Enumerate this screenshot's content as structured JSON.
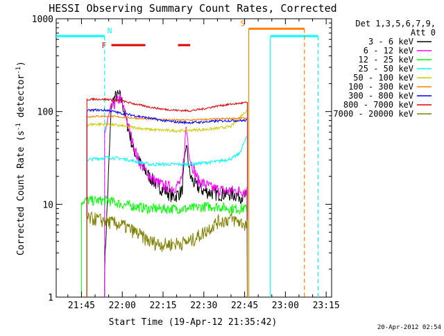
{
  "chart_data": {
    "type": "line",
    "title": "HESSI Observing Summary Count Rates, Corrected",
    "xlabel": "Start Time (19-Apr-12 21:35:42)",
    "ylabel_main": "Corrected Count Rate (s",
    "ylabel_sup1": "-1",
    "ylabel_mid": " detector",
    "ylabel_sup2": "-1",
    "ylabel_end": ")",
    "y_scale": "log",
    "ylim": [
      1,
      1000
    ],
    "xlim": [
      "21:35:42",
      "23:17:00"
    ],
    "x_ticks": [
      {
        "t": "21:45",
        "label": "21:45"
      },
      {
        "t": "22:00",
        "label": "22:00"
      },
      {
        "t": "22:15",
        "label": "22:15"
      },
      {
        "t": "22:30",
        "label": "22:30"
      },
      {
        "t": "22:45",
        "label": "22:45"
      },
      {
        "t": "23:00",
        "label": "23:00"
      },
      {
        "t": "23:15",
        "label": "23:15"
      }
    ],
    "y_ticks": [
      {
        "v": 1,
        "label": "1"
      },
      {
        "v": 10,
        "label": "10"
      },
      {
        "v": 100,
        "label": "100"
      },
      {
        "v": 1000,
        "label": "1000"
      }
    ],
    "legend": {
      "placement": "right",
      "header1": "Det 1,3,5,6,7,9,",
      "header2": "Att 0"
    },
    "series": [
      {
        "name": "3 - 6 keV",
        "color": "#000000",
        "x": [
          "21:53:30",
          "21:56:00",
          "21:57:30",
          "21:59:00",
          "22:00:00",
          "22:02:00",
          "22:04:00",
          "22:06:00",
          "22:08:00",
          "22:10:00",
          "22:13:00",
          "22:16:00",
          "22:19:00",
          "22:22:00",
          "22:23:30",
          "22:25:00",
          "22:27:00",
          "22:30:00",
          "22:35:00",
          "22:40:00",
          "22:46:00"
        ],
        "y": [
          2,
          120,
          145,
          150,
          125,
          70,
          40,
          30,
          24,
          20,
          16,
          14,
          12,
          14,
          45,
          20,
          16,
          14,
          13,
          13,
          12
        ]
      },
      {
        "name": "6 - 12 keV",
        "color": "#ff00ff",
        "x": [
          "21:53:30",
          "21:56:00",
          "21:58:00",
          "21:59:00",
          "22:00:00",
          "22:02:00",
          "22:04:00",
          "22:06:00",
          "22:09:00",
          "22:12:00",
          "22:15:00",
          "22:19:00",
          "22:22:00",
          "22:23:30",
          "22:25:00",
          "22:28:00",
          "22:33:00",
          "22:38:00",
          "22:46:00"
        ],
        "y": [
          60,
          110,
          130,
          140,
          120,
          75,
          45,
          30,
          22,
          18,
          16,
          15,
          18,
          70,
          30,
          18,
          15,
          14,
          14
        ]
      },
      {
        "name": "12 - 25 keV",
        "color": "#00ff00",
        "x": [
          "21:45:00",
          "21:50:00",
          "21:55:00",
          "22:00:00",
          "22:05:00",
          "22:10:00",
          "22:15:00",
          "22:20:00",
          "22:25:00",
          "22:30:00",
          "22:35:00",
          "22:40:00",
          "22:46:00"
        ],
        "y": [
          11,
          11,
          11,
          10,
          9.5,
          9,
          9,
          9,
          9,
          9.5,
          9.5,
          9,
          9
        ]
      },
      {
        "name": "25 - 50 keV",
        "color": "#00ffff",
        "x": [
          "21:47:00",
          "21:50:00",
          "21:55:00",
          "22:00:00",
          "22:05:00",
          "22:10:00",
          "22:15:00",
          "22:20:00",
          "22:25:00",
          "22:30:00",
          "22:35:00",
          "22:40:00",
          "22:43:00",
          "22:46:00"
        ],
        "y": [
          30,
          31,
          32,
          31,
          29,
          27,
          27,
          27,
          27,
          28,
          29,
          31,
          35,
          55
        ]
      },
      {
        "name": "50 - 100 keV",
        "color": "#cccc00",
        "x": [
          "21:47:00",
          "21:50:00",
          "21:55:00",
          "22:00:00",
          "22:05:00",
          "22:10:00",
          "22:15:00",
          "22:20:00",
          "22:25:00",
          "22:30:00",
          "22:35:00",
          "22:40:00",
          "22:46:00"
        ],
        "y": [
          72,
          73,
          73,
          70,
          67,
          64,
          63,
          62,
          63,
          64,
          66,
          69,
          105
        ]
      },
      {
        "name": "100 - 300 keV",
        "color": "#ff8000",
        "x": [
          "21:47:00",
          "21:50:00",
          "21:55:00",
          "22:00:00",
          "22:05:00",
          "22:10:00",
          "22:15:00",
          "22:20:00",
          "22:25:00",
          "22:30:00",
          "22:35:00",
          "22:40:00",
          "22:46:00"
        ],
        "y": [
          88,
          89,
          89,
          87,
          85,
          83,
          82,
          81,
          81,
          82,
          83,
          84,
          85
        ]
      },
      {
        "name": "300 - 800 keV",
        "color": "#0000ff",
        "x": [
          "21:47:00",
          "21:50:00",
          "21:55:00",
          "22:00:00",
          "22:05:00",
          "22:10:00",
          "22:15:00",
          "22:20:00",
          "22:25:00",
          "22:30:00",
          "22:35:00",
          "22:40:00",
          "22:46:00"
        ],
        "y": [
          102,
          104,
          103,
          95,
          90,
          85,
          80,
          77,
          76,
          77,
          79,
          80,
          80
        ]
      },
      {
        "name": "800 - 7000 keV",
        "color": "#dd0000",
        "x": [
          "21:47:00",
          "21:50:00",
          "21:55:00",
          "22:00:00",
          "22:05:00",
          "22:10:00",
          "22:15:00",
          "22:20:00",
          "22:25:00",
          "22:30:00",
          "22:35:00",
          "22:40:00",
          "22:46:00"
        ],
        "y": [
          135,
          136,
          135,
          130,
          120,
          112,
          106,
          103,
          102,
          107,
          115,
          120,
          125
        ]
      },
      {
        "name": "7000 - 20000 keV",
        "color": "#808000",
        "x": [
          "21:47:00",
          "21:50:00",
          "21:55:00",
          "22:00:00",
          "22:05:00",
          "22:10:00",
          "22:15:00",
          "22:20:00",
          "22:25:00",
          "22:30:00",
          "22:35:00",
          "22:40:00",
          "22:46:00"
        ],
        "y": [
          7,
          7,
          6.5,
          6,
          5,
          4,
          3.7,
          3.8,
          4,
          5,
          6.5,
          7,
          6
        ]
      }
    ],
    "flags": [
      {
        "label": "N",
        "color": "#00ffff",
        "level": 650,
        "x1": "21:35:42",
        "x2": "21:53:30",
        "vline_dashed": "21:53:30"
      },
      {
        "label": "N",
        "color": "#00ffff",
        "level": 650,
        "x1": "22:54:30",
        "x2": "23:12:00",
        "vline_solid": "22:54:30",
        "vline_dashed": "23:12:00",
        "show_label": false
      },
      {
        "label": "F",
        "color": "#dd0000",
        "level": 520,
        "segments": [
          [
            "21:56:00",
            "22:08:30"
          ],
          [
            "22:20:30",
            "22:25:00"
          ]
        ]
      },
      {
        "label": "S",
        "color": "#ff8000",
        "level": 780,
        "x1": "22:46:30",
        "x2": "23:07:00",
        "vline_solid": "22:46:30",
        "vline_dashed": "23:07:00"
      }
    ],
    "start_rise": "21:47:00",
    "footer_date": "20-Apr-2012 02:54"
  }
}
